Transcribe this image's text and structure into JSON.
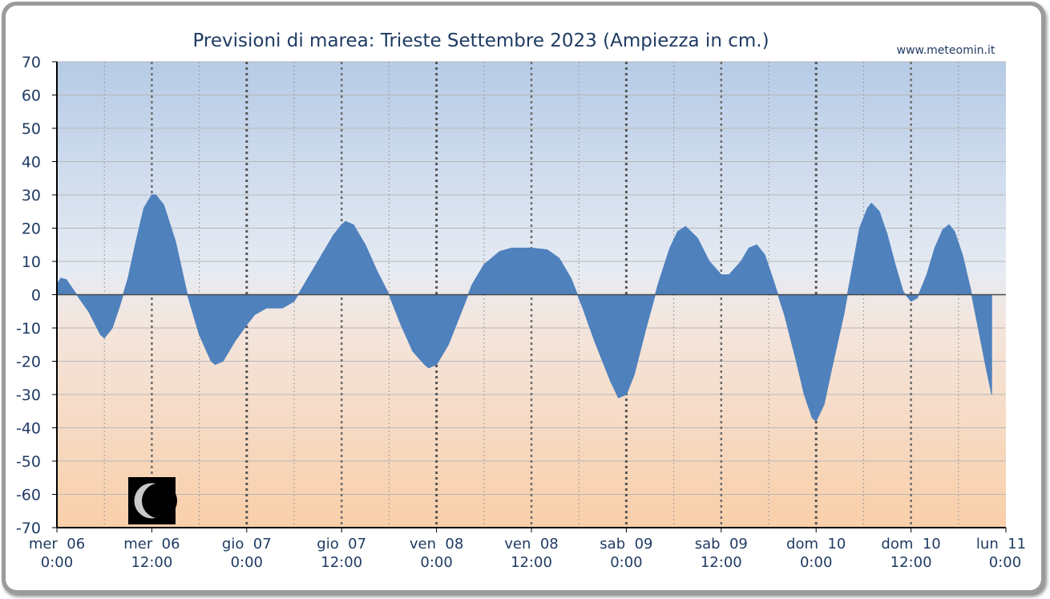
{
  "chart_data": {
    "type": "area",
    "title": "Previsioni di marea: Trieste Settembre 2023 (Ampiezza in cm.)",
    "credit": "www.meteomin.it",
    "ylim": [
      -70,
      70
    ],
    "yticks": [
      70,
      60,
      50,
      40,
      30,
      20,
      10,
      0,
      -10,
      -20,
      -30,
      -40,
      -50,
      -60,
      -70
    ],
    "xlim_hours": [
      0,
      120
    ],
    "x_unit": "hours from mer 06 0:00",
    "xticks": [
      {
        "hour": 0,
        "day": "mer  06",
        "time": "0:00"
      },
      {
        "hour": 12,
        "day": "mer  06",
        "time": "12:00"
      },
      {
        "hour": 24,
        "day": "gio  07",
        "time": "0:00"
      },
      {
        "hour": 36,
        "day": "gio  07",
        "time": "12:00"
      },
      {
        "hour": 48,
        "day": "ven  08",
        "time": "0:00"
      },
      {
        "hour": 60,
        "day": "ven  08",
        "time": "12:00"
      },
      {
        "hour": 72,
        "day": "sab  09",
        "time": "0:00"
      },
      {
        "hour": 84,
        "day": "sab  09",
        "time": "12:00"
      },
      {
        "hour": 96,
        "day": "dom  10",
        "time": "0:00"
      },
      {
        "hour": 108,
        "day": "dom  10",
        "time": "12:00"
      },
      {
        "hour": 120,
        "day": "lun  11",
        "time": "0:00"
      }
    ],
    "grid": true,
    "series": [
      {
        "color": "#4f81bd",
        "points": [
          [
            0,
            3
          ],
          [
            0.5,
            5
          ],
          [
            1.2,
            4.5
          ],
          [
            2.5,
            0
          ],
          [
            4,
            -5
          ],
          [
            5.5,
            -12
          ],
          [
            6,
            -13
          ],
          [
            7,
            -10
          ],
          [
            8,
            -3
          ],
          [
            9,
            5
          ],
          [
            10,
            16
          ],
          [
            11,
            26
          ],
          [
            12,
            30
          ],
          [
            12.5,
            30
          ],
          [
            13.5,
            27
          ],
          [
            15,
            16
          ],
          [
            16.5,
            0
          ],
          [
            18,
            -12
          ],
          [
            19.5,
            -20
          ],
          [
            20,
            -21
          ],
          [
            21,
            -20
          ],
          [
            22.5,
            -14
          ],
          [
            24,
            -9
          ],
          [
            25,
            -6
          ],
          [
            26.5,
            -4
          ],
          [
            28.5,
            -4
          ],
          [
            30,
            -2
          ],
          [
            31,
            2
          ],
          [
            33,
            10
          ],
          [
            35,
            18
          ],
          [
            36,
            21
          ],
          [
            36.5,
            22
          ],
          [
            37.5,
            21
          ],
          [
            39,
            15
          ],
          [
            40.5,
            7
          ],
          [
            42,
            0
          ],
          [
            43.5,
            -9
          ],
          [
            45,
            -17
          ],
          [
            46.5,
            -21
          ],
          [
            47,
            -22
          ],
          [
            48,
            -21
          ],
          [
            49.5,
            -15
          ],
          [
            51,
            -6
          ],
          [
            52.5,
            3
          ],
          [
            54,
            9
          ],
          [
            56,
            13
          ],
          [
            57.5,
            14
          ],
          [
            60,
            14
          ],
          [
            62,
            13.5
          ],
          [
            63.5,
            11
          ],
          [
            65,
            5
          ],
          [
            66.5,
            -4
          ],
          [
            68,
            -14
          ],
          [
            70,
            -26
          ],
          [
            71,
            -31
          ],
          [
            72,
            -30
          ],
          [
            73,
            -24
          ],
          [
            74.5,
            -10
          ],
          [
            76,
            3
          ],
          [
            77.5,
            14
          ],
          [
            78.5,
            19
          ],
          [
            79.5,
            20.5
          ],
          [
            81,
            17
          ],
          [
            82.5,
            10
          ],
          [
            84,
            6
          ],
          [
            85,
            6
          ],
          [
            86.5,
            10
          ],
          [
            87.5,
            14
          ],
          [
            88.5,
            15
          ],
          [
            89.5,
            12
          ],
          [
            90.5,
            5
          ],
          [
            92,
            -6
          ],
          [
            93.5,
            -20
          ],
          [
            94.5,
            -30
          ],
          [
            95.5,
            -37
          ],
          [
            96,
            -38
          ],
          [
            97,
            -33
          ],
          [
            98,
            -22
          ],
          [
            99.5,
            -6
          ],
          [
            100.5,
            7
          ],
          [
            101.5,
            20
          ],
          [
            102.5,
            26
          ],
          [
            103,
            27.5
          ],
          [
            104,
            25
          ],
          [
            105,
            18
          ],
          [
            106,
            9
          ],
          [
            107,
            1
          ],
          [
            108,
            -2
          ],
          [
            108.8,
            -1
          ],
          [
            110,
            6
          ],
          [
            111,
            14
          ],
          [
            112,
            19.5
          ],
          [
            112.8,
            21
          ],
          [
            113.5,
            19
          ],
          [
            114.5,
            12
          ],
          [
            115.5,
            2
          ],
          [
            116.5,
            -10
          ],
          [
            117.5,
            -22
          ],
          [
            118.2,
            -30
          ]
        ]
      }
    ],
    "moon_phase": "waning crescent"
  }
}
